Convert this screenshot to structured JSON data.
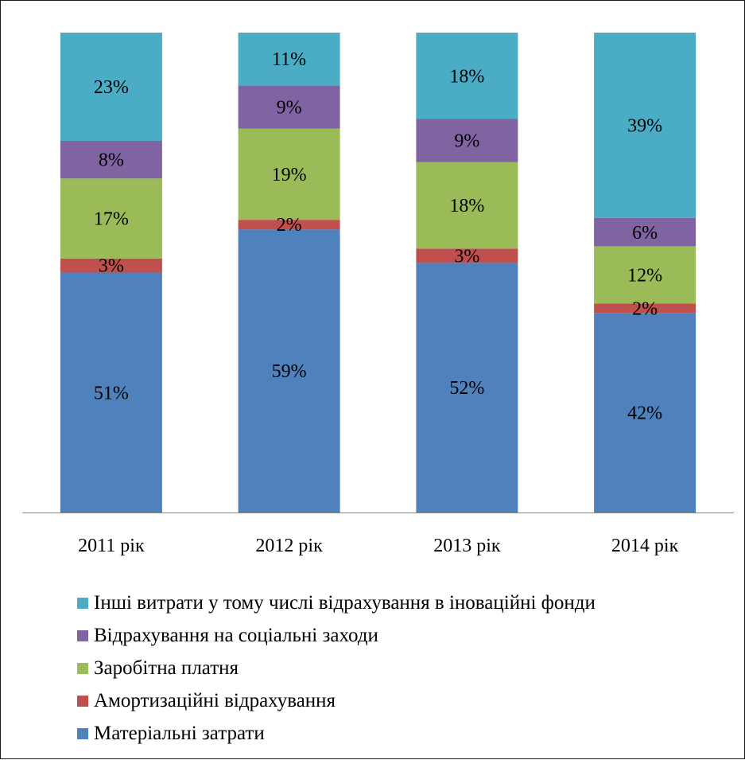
{
  "chart_data": {
    "type": "bar",
    "stacked": true,
    "categories": [
      "2011 рік",
      "2012 рік",
      "2013 рік",
      "2014 рік"
    ],
    "series": [
      {
        "name": "Матеріальні затрати",
        "color": "#4f81bd",
        "values": [
          51,
          59,
          52,
          42
        ],
        "labels": [
          "51%",
          "59%",
          "52%",
          "42%"
        ]
      },
      {
        "name": "Амортизаційні відрахування",
        "color": "#c0504d",
        "values": [
          3,
          2,
          3,
          2
        ],
        "labels": [
          "3%",
          "2%",
          "3%",
          "2%"
        ]
      },
      {
        "name": "Заробітна платня",
        "color": "#9bbb59",
        "values": [
          17,
          19,
          18,
          12
        ],
        "labels": [
          "17%",
          "19%",
          "18%",
          "12%"
        ]
      },
      {
        "name": "Відрахування на соціальні заходи",
        "color": "#8064a2",
        "values": [
          8,
          9,
          9,
          6
        ],
        "labels": [
          "8%",
          "9%",
          "9%",
          "6%"
        ]
      },
      {
        "name": "Інші витрати у тому числі відрахування в іноваційні фонди",
        "color": "#4bacc6",
        "values": [
          23,
          11,
          18,
          39
        ],
        "labels": [
          "23%",
          "11%",
          "18%",
          "39%"
        ]
      }
    ],
    "ylim": [
      0,
      100
    ],
    "grid": false,
    "legend_position": "bottom"
  }
}
